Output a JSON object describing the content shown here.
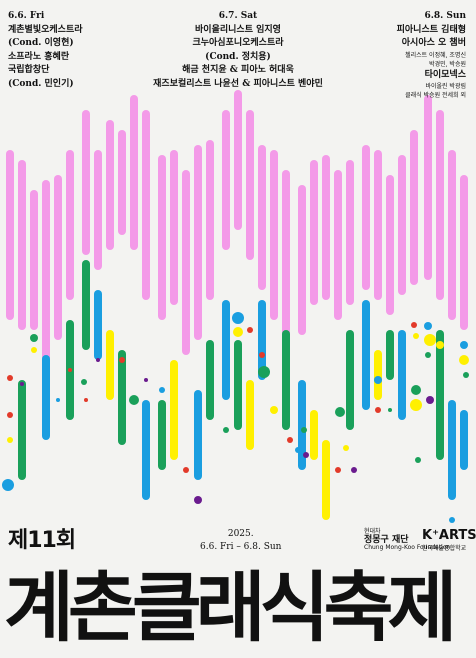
{
  "day1": {
    "date": "6.6. Fri",
    "lines": [
      "계촌별빛오케스트라",
      "(Cond. 이영현)",
      "소프라노 홍혜란",
      "국립합창단",
      "(Cond. 민인기)"
    ]
  },
  "day2": {
    "date": "6.7. Sat",
    "lines": [
      "바이올리니스트 임지영",
      "크누아심포니오케스트라",
      "(Cond. 정치용)",
      "해금 천지윤 & 피아노 허대욱",
      "재즈보컬리스트 나윤선 & 피아니스트 벤야민"
    ]
  },
  "day3": {
    "date": "6.8. Sun",
    "lines": [
      "피아니스트 김태형",
      "아시아스 오 챔버"
    ],
    "small1": "첼리스트 이정혜, 조명신",
    "small2": "박경민, 박승원",
    "line3": "타이모넥스",
    "small3": "바이올린 박광림",
    "small4": "클래식 박승원 전세희 외"
  },
  "edition": "제11회",
  "festival_dates": {
    "year": "2025.",
    "range": "6.6. Fri – 6.8. Sun"
  },
  "title": "계촌클래식축제",
  "sponsor1": {
    "line1": "현대차",
    "name": "정몽구 재단",
    "sub": "Chung Mong-Koo Foundation"
  },
  "sponsor2": {
    "mark": "K⁺ARTS",
    "sub": "한국예술종합학교"
  },
  "colors": {
    "pink": "#f39ae8",
    "green": "#1aa05a",
    "blue": "#1a9ee0",
    "yellow": "#fff000",
    "purple": "#6a1b8e",
    "red": "#e23a2a"
  }
}
